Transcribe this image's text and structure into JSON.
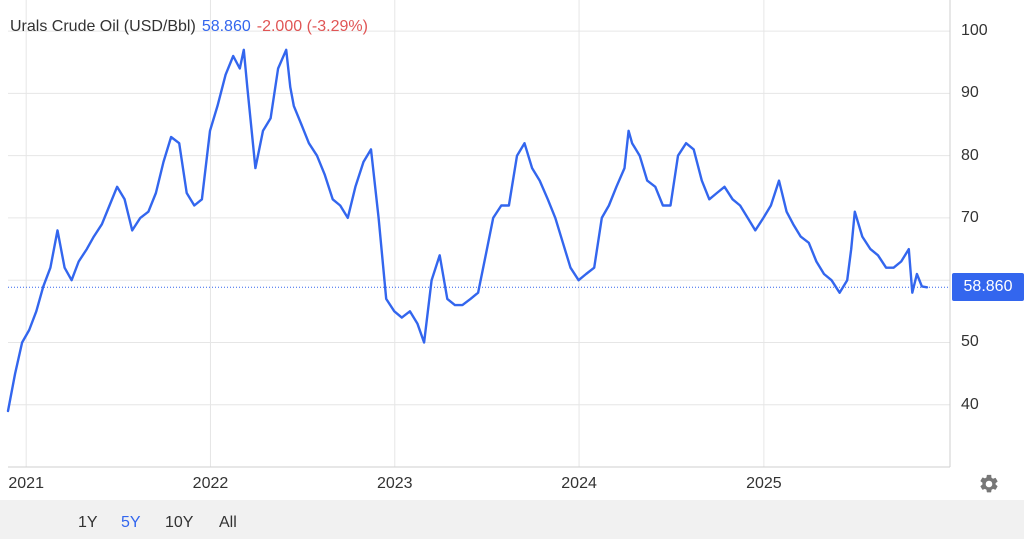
{
  "header": {
    "name": "Urals Crude Oil (USD/Bbl)",
    "price": "58.860",
    "change": "-2.000 (-3.29%)"
  },
  "colors": {
    "line": "#3366ee",
    "price": "#3366ee",
    "change": "#e05555",
    "grid": "#e6e6e6",
    "tag_bg": "#3366ee"
  },
  "ranges": {
    "items": [
      "1Y",
      "5Y",
      "10Y",
      "All"
    ],
    "selected": "5Y"
  },
  "settings_icon": "gear-icon",
  "price_tag": "58.860",
  "chart_data": {
    "type": "line",
    "ylim": [
      30,
      105
    ],
    "xlim": [
      "2020-11-26",
      "2025-11-26"
    ],
    "y_ticks": [
      "40",
      "50",
      "60",
      "70",
      "80",
      "90",
      "100"
    ],
    "x_ticks": [
      "2021",
      "2022",
      "2023",
      "2024",
      "2025"
    ],
    "current_value": 58.86,
    "grid": true,
    "series": [
      {
        "x": [
          "2020-11-26",
          "2020-12-10",
          "2020-12-24",
          "2021-01-07",
          "2021-01-21",
          "2021-02-04",
          "2021-02-18",
          "2021-03-04",
          "2021-03-18",
          "2021-04-01",
          "2021-04-15",
          "2021-05-01",
          "2021-05-15",
          "2021-05-31",
          "2021-06-15",
          "2021-06-30",
          "2021-07-15",
          "2021-07-30",
          "2021-08-15",
          "2021-08-31",
          "2021-09-15",
          "2021-09-30",
          "2021-10-15",
          "2021-10-31",
          "2021-11-15",
          "2021-11-30",
          "2021-12-15",
          "2021-12-31",
          "2022-01-15",
          "2022-01-31",
          "2022-02-15",
          "2022-02-28",
          "2022-03-08",
          "2022-03-15",
          "2022-03-31",
          "2022-04-15",
          "2022-04-30",
          "2022-05-15",
          "2022-05-31",
          "2022-06-08",
          "2022-06-15",
          "2022-06-30",
          "2022-07-15",
          "2022-07-31",
          "2022-08-15",
          "2022-08-31",
          "2022-09-15",
          "2022-09-30",
          "2022-10-15",
          "2022-10-31",
          "2022-11-15",
          "2022-11-30",
          "2022-12-15",
          "2022-12-31",
          "2023-01-15",
          "2023-01-31",
          "2023-02-15",
          "2023-02-28",
          "2023-03-15",
          "2023-03-31",
          "2023-04-15",
          "2023-04-30",
          "2023-05-15",
          "2023-05-31",
          "2023-06-15",
          "2023-06-30",
          "2023-07-15",
          "2023-07-31",
          "2023-08-15",
          "2023-08-31",
          "2023-09-15",
          "2023-09-30",
          "2023-10-15",
          "2023-10-31",
          "2023-11-15",
          "2023-11-30",
          "2023-12-15",
          "2023-12-31",
          "2024-01-15",
          "2024-01-31",
          "2024-02-15",
          "2024-02-29",
          "2024-03-15",
          "2024-03-31",
          "2024-04-08",
          "2024-04-15",
          "2024-04-30",
          "2024-05-15",
          "2024-05-31",
          "2024-06-15",
          "2024-06-30",
          "2024-07-15",
          "2024-07-31",
          "2024-08-15",
          "2024-08-31",
          "2024-09-15",
          "2024-09-30",
          "2024-10-15",
          "2024-10-31",
          "2024-11-15",
          "2024-11-30",
          "2024-12-15",
          "2024-12-31",
          "2025-01-15",
          "2025-01-31",
          "2025-02-15",
          "2025-02-28",
          "2025-03-15",
          "2025-03-31",
          "2025-04-15",
          "2025-04-30",
          "2025-05-15",
          "2025-05-31",
          "2025-06-15",
          "2025-06-23",
          "2025-06-30",
          "2025-07-15",
          "2025-07-31",
          "2025-08-15",
          "2025-08-31",
          "2025-09-15",
          "2025-09-30",
          "2025-10-15",
          "2025-10-22",
          "2025-10-31",
          "2025-11-10",
          "2025-11-20"
        ],
        "y": [
          39,
          45,
          50,
          52,
          55,
          59,
          62,
          68,
          62,
          60,
          63,
          65,
          67,
          69,
          72,
          75,
          73,
          68,
          70,
          71,
          74,
          79,
          83,
          82,
          74,
          72,
          73,
          84,
          88,
          93,
          96,
          94,
          97,
          91,
          78,
          84,
          86,
          94,
          97,
          91,
          88,
          85,
          82,
          80,
          77,
          73,
          72,
          70,
          75,
          79,
          81,
          70,
          57,
          55,
          54,
          55,
          53,
          50,
          60,
          64,
          57,
          56,
          56,
          57,
          58,
          64,
          70,
          72,
          72,
          80,
          82,
          78,
          76,
          73,
          70,
          66,
          62,
          60,
          61,
          62,
          70,
          72,
          75,
          78,
          84,
          82,
          80,
          76,
          75,
          72,
          72,
          80,
          82,
          81,
          76,
          73,
          74,
          75,
          73,
          72,
          70,
          68,
          70,
          72,
          76,
          71,
          69,
          67,
          66,
          63,
          61,
          60,
          58,
          60,
          65,
          71,
          67,
          65,
          64,
          62,
          62,
          63,
          65,
          58,
          61,
          59,
          58.86
        ]
      }
    ]
  }
}
